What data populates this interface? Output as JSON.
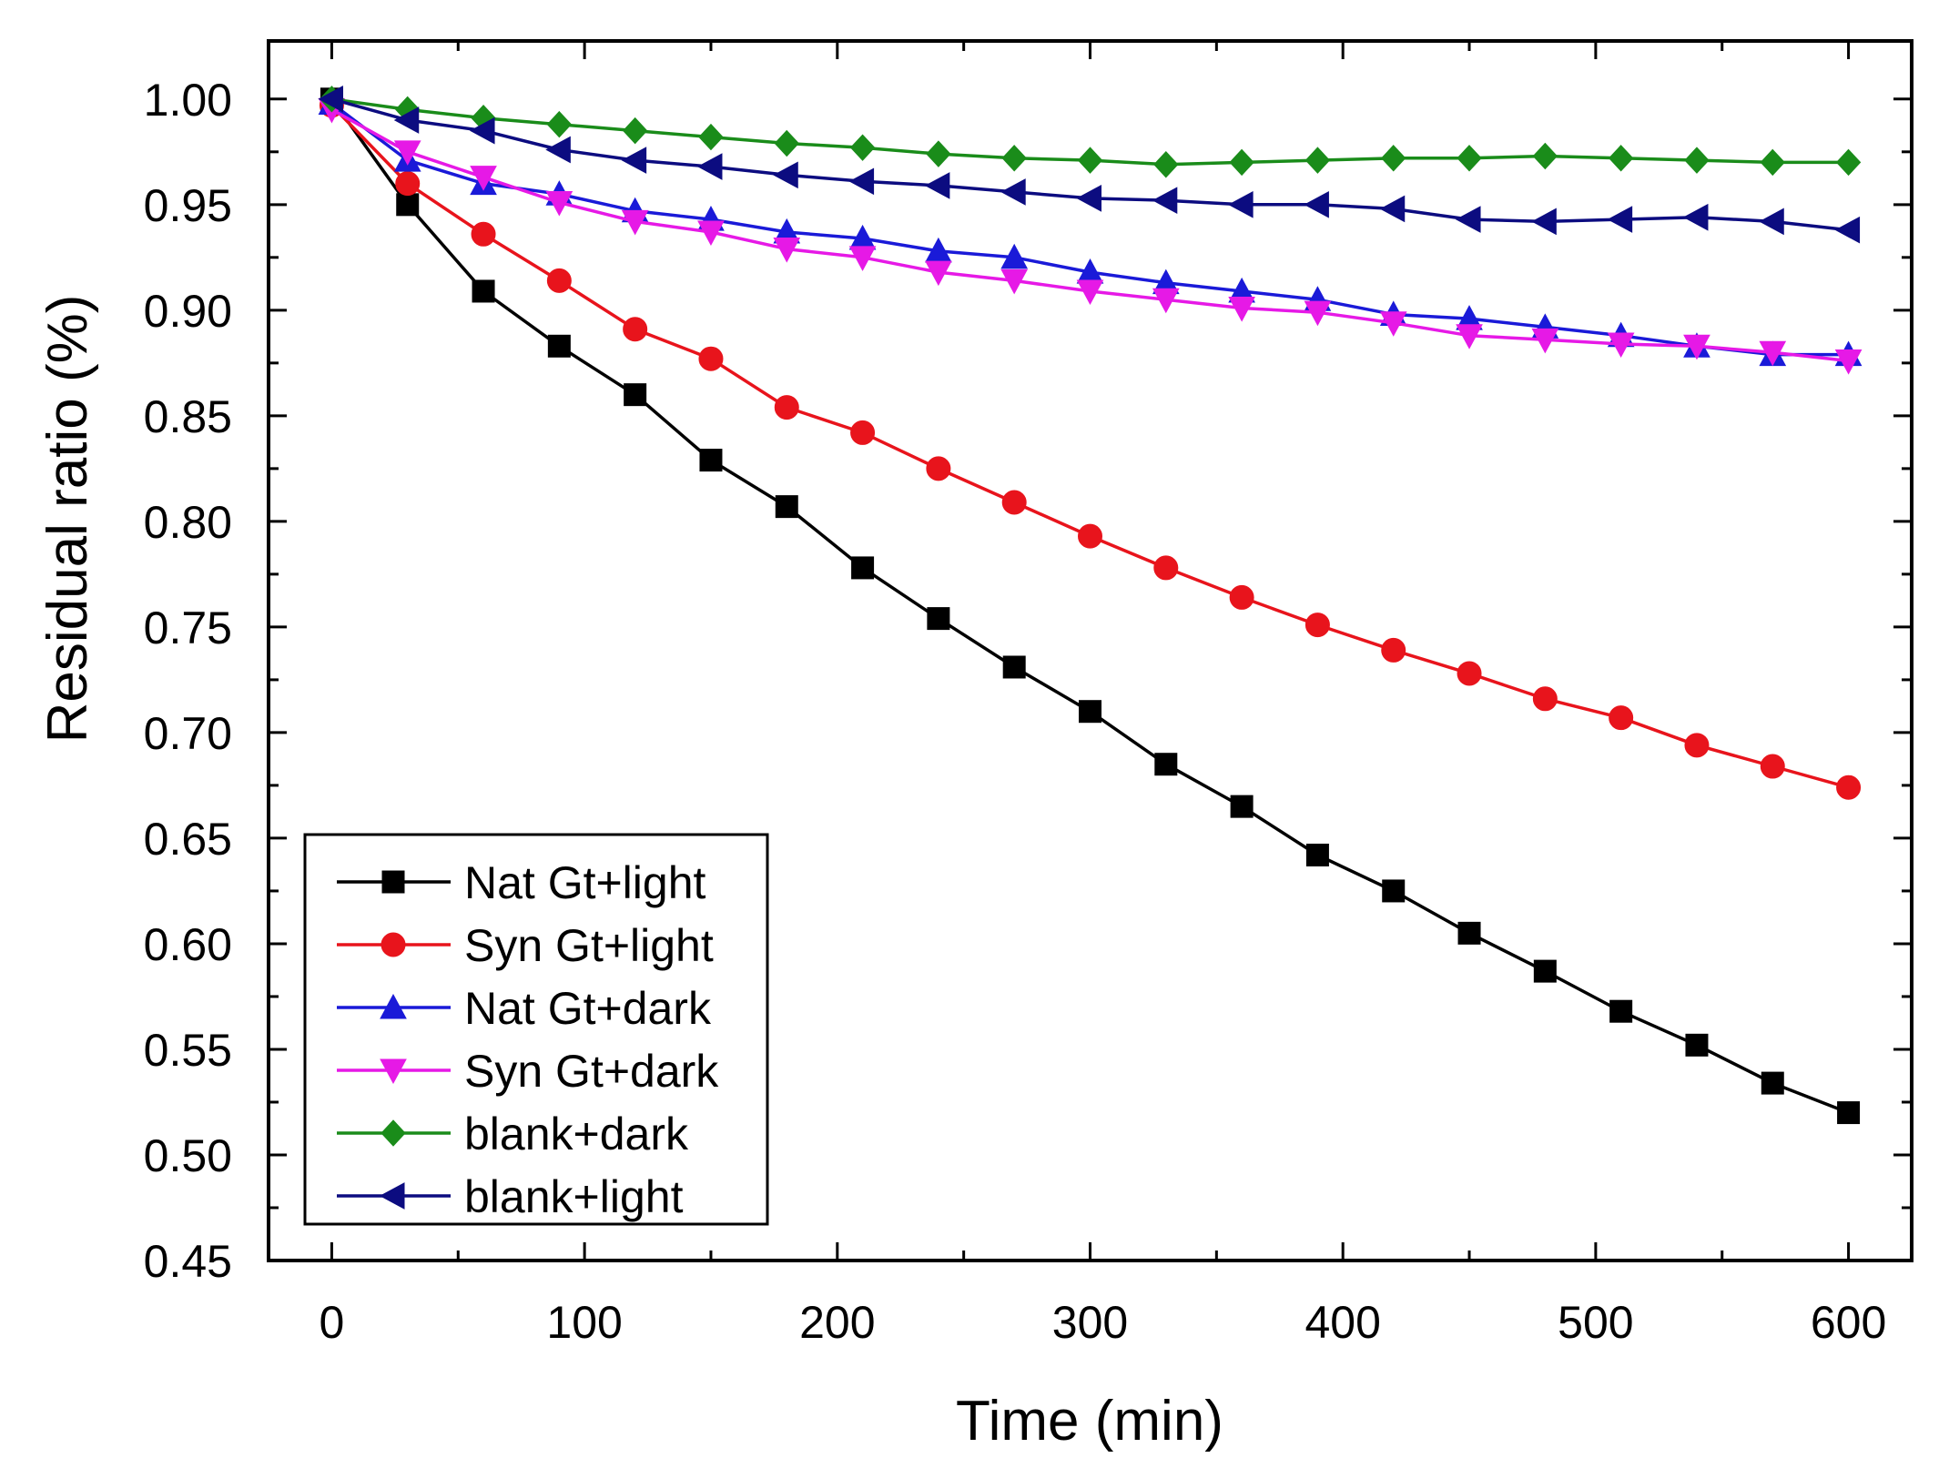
{
  "chart_data": {
    "type": "line",
    "title": "",
    "xlabel": "Time (min)",
    "ylabel": "Residual ratio (%)",
    "xlim": [
      -25,
      625
    ],
    "ylim": [
      0.45,
      1.0275
    ],
    "x_ticks": [
      0,
      100,
      200,
      300,
      400,
      500,
      600
    ],
    "x_tick_labels": [
      "0",
      "100",
      "200",
      "300",
      "400",
      "500",
      "600"
    ],
    "y_ticks": [
      0.45,
      0.5,
      0.55,
      0.6,
      0.65,
      0.7,
      0.75,
      0.8,
      0.85,
      0.9,
      0.95,
      1.0
    ],
    "y_tick_labels": [
      "0.45",
      "0.50",
      "0.55",
      "0.60",
      "0.65",
      "0.70",
      "0.75",
      "0.80",
      "0.85",
      "0.90",
      "0.95",
      "1.00"
    ],
    "grid": false,
    "legend_position": "bottom-left",
    "x": [
      0,
      30,
      60,
      90,
      120,
      150,
      180,
      210,
      240,
      270,
      300,
      330,
      360,
      390,
      420,
      450,
      480,
      510,
      540,
      570,
      600
    ],
    "series": [
      {
        "name": "Nat Gt+light",
        "color": "#000000",
        "marker": "square",
        "values": [
          1.0,
          0.95,
          0.909,
          0.883,
          0.86,
          0.829,
          0.807,
          0.778,
          0.754,
          0.731,
          0.71,
          0.685,
          0.665,
          0.642,
          0.625,
          0.605,
          0.587,
          0.568,
          0.552,
          0.534,
          0.52
        ]
      },
      {
        "name": "Syn Gt+light",
        "color": "#e8141c",
        "marker": "circle",
        "values": [
          0.997,
          0.96,
          0.936,
          0.914,
          0.891,
          0.877,
          0.854,
          0.842,
          0.825,
          0.809,
          0.793,
          0.778,
          0.764,
          0.751,
          0.739,
          0.728,
          0.716,
          0.707,
          0.694,
          0.684,
          0.674
        ]
      },
      {
        "name": "Nat Gt+dark",
        "color": "#1a1ad8",
        "marker": "triangle-up",
        "values": [
          0.998,
          0.971,
          0.96,
          0.955,
          0.947,
          0.943,
          0.937,
          0.934,
          0.928,
          0.925,
          0.918,
          0.913,
          0.909,
          0.905,
          0.898,
          0.896,
          0.892,
          0.888,
          0.883,
          0.879,
          0.879
        ]
      },
      {
        "name": "Syn Gt+dark",
        "color": "#e619e6",
        "marker": "triangle-down",
        "values": [
          0.995,
          0.975,
          0.963,
          0.951,
          0.942,
          0.937,
          0.929,
          0.925,
          0.918,
          0.914,
          0.909,
          0.905,
          0.901,
          0.899,
          0.894,
          0.888,
          0.886,
          0.884,
          0.883,
          0.88,
          0.876
        ]
      },
      {
        "name": "blank+dark",
        "color": "#1a8c1a",
        "marker": "diamond",
        "values": [
          1.0,
          0.995,
          0.991,
          0.988,
          0.985,
          0.982,
          0.979,
          0.977,
          0.974,
          0.972,
          0.971,
          0.969,
          0.97,
          0.971,
          0.972,
          0.972,
          0.973,
          0.972,
          0.971,
          0.97,
          0.97
        ]
      },
      {
        "name": "blank+light",
        "color": "#0c0c80",
        "marker": "triangle-left",
        "values": [
          1.0,
          0.99,
          0.985,
          0.976,
          0.971,
          0.968,
          0.964,
          0.961,
          0.959,
          0.956,
          0.953,
          0.952,
          0.95,
          0.95,
          0.948,
          0.943,
          0.942,
          0.943,
          0.944,
          0.942,
          0.938
        ]
      }
    ]
  }
}
